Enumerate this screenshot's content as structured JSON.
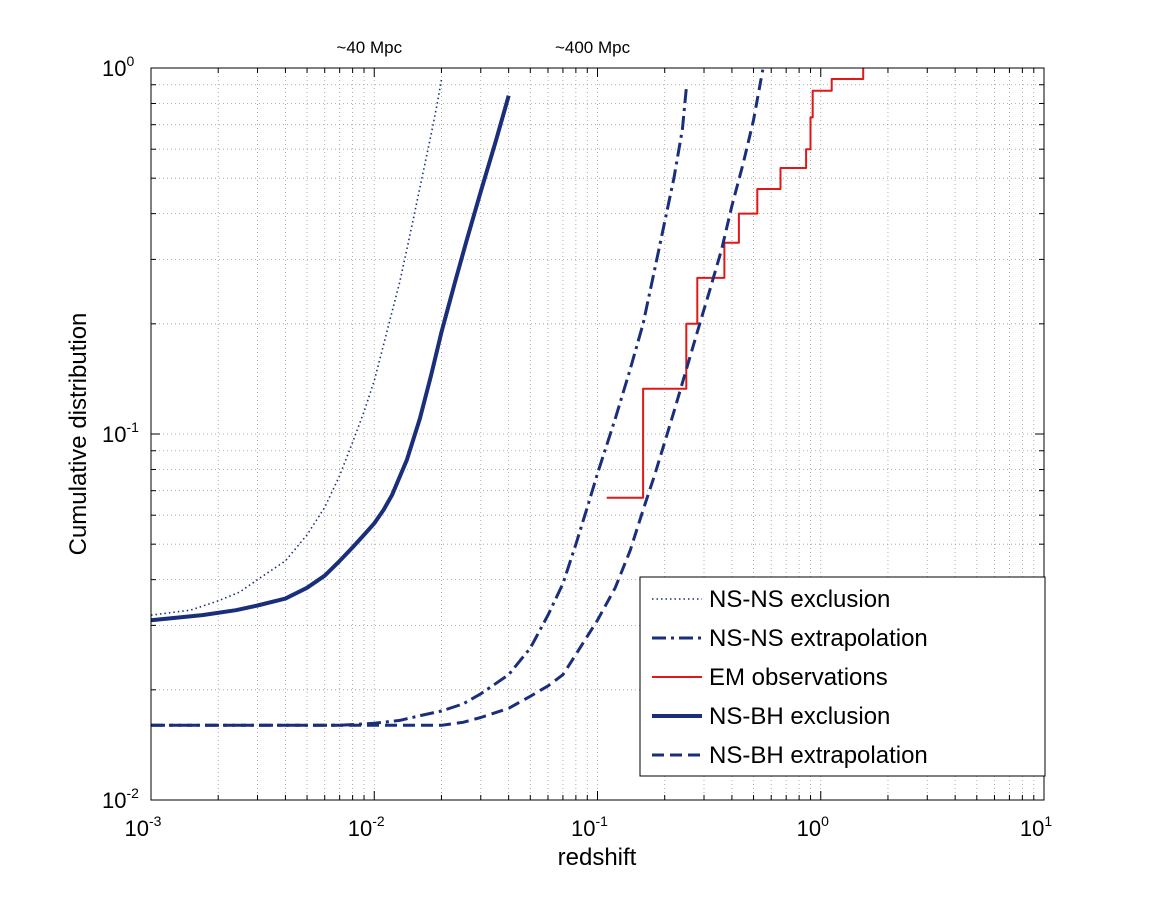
{
  "chart_data": {
    "type": "line",
    "xscale": "log",
    "yscale": "log",
    "xlim": [
      0.001,
      10
    ],
    "ylim": [
      0.01,
      1
    ],
    "xlabel": "redshift",
    "ylabel": "Cumulative distribution",
    "grid": true,
    "legend_position": "bottom-right",
    "x_ticks": [
      {
        "value": 0.001,
        "base": "10",
        "exp": "-3"
      },
      {
        "value": 0.01,
        "base": "10",
        "exp": "-2"
      },
      {
        "value": 0.1,
        "base": "10",
        "exp": "-1"
      },
      {
        "value": 1,
        "base": "10",
        "exp": "0"
      },
      {
        "value": 10,
        "base": "10",
        "exp": "1"
      }
    ],
    "y_ticks": [
      {
        "value": 0.01,
        "base": "10",
        "exp": "-2"
      },
      {
        "value": 0.1,
        "base": "10",
        "exp": "-1"
      },
      {
        "value": 1,
        "base": "10",
        "exp": "0"
      }
    ],
    "annotations": [
      {
        "text": "~40 Mpc",
        "x": 0.0095
      },
      {
        "text": "~400 Mpc",
        "x": 0.095
      }
    ],
    "series": [
      {
        "name": "NS-NS exclusion",
        "style": "dotted",
        "color": "#1a2f7a",
        "width": 1.6,
        "x": [
          0.001,
          0.0015,
          0.002,
          0.0025,
          0.003,
          0.004,
          0.005,
          0.006,
          0.007,
          0.008,
          0.009,
          0.01,
          0.011,
          0.012,
          0.013,
          0.014,
          0.015,
          0.016,
          0.017,
          0.018,
          0.019,
          0.02
        ],
        "y": [
          0.032,
          0.033,
          0.035,
          0.037,
          0.04,
          0.045,
          0.053,
          0.063,
          0.077,
          0.095,
          0.115,
          0.14,
          0.175,
          0.215,
          0.26,
          0.32,
          0.39,
          0.47,
          0.56,
          0.66,
          0.78,
          0.93
        ]
      },
      {
        "name": "NS-NS extrapolation",
        "style": "dashdot",
        "color": "#1a2f7a",
        "width": 3,
        "x": [
          0.001,
          0.002,
          0.005,
          0.007,
          0.01,
          0.013,
          0.016,
          0.02,
          0.025,
          0.03,
          0.04,
          0.05,
          0.06,
          0.07,
          0.08,
          0.09,
          0.1,
          0.12,
          0.14,
          0.16,
          0.18,
          0.2,
          0.22,
          0.24,
          0.25
        ],
        "y": [
          0.016,
          0.016,
          0.016,
          0.016,
          0.0162,
          0.0165,
          0.017,
          0.0175,
          0.0183,
          0.0195,
          0.022,
          0.026,
          0.032,
          0.039,
          0.05,
          0.063,
          0.078,
          0.11,
          0.15,
          0.2,
          0.28,
          0.38,
          0.5,
          0.68,
          0.88
        ]
      },
      {
        "name": "EM observations",
        "style": "step",
        "color": "#e01818",
        "width": 2,
        "x": [
          0.11,
          0.16,
          0.16,
          0.25,
          0.25,
          0.26,
          0.26,
          0.28,
          0.28,
          0.37,
          0.37,
          0.43,
          0.43,
          0.52,
          0.52,
          0.66,
          0.66,
          0.86,
          0.86,
          0.9,
          0.9,
          0.92,
          0.92,
          0.96,
          0.96,
          1.12,
          1.12,
          1.55,
          1.55
        ],
        "y": [
          0.067,
          0.067,
          0.133,
          0.133,
          0.2,
          0.2,
          0.2,
          0.2,
          0.267,
          0.267,
          0.333,
          0.333,
          0.4,
          0.4,
          0.467,
          0.467,
          0.533,
          0.533,
          0.6,
          0.6,
          0.733,
          0.733,
          0.867,
          0.867,
          0.867,
          0.867,
          0.933,
          0.933,
          1.0
        ]
      },
      {
        "name": "NS-BH exclusion",
        "style": "solid",
        "color": "#1a2f7a",
        "width": 4,
        "x": [
          0.001,
          0.0017,
          0.0024,
          0.003,
          0.004,
          0.005,
          0.006,
          0.007,
          0.008,
          0.009,
          0.01,
          0.011,
          0.012,
          0.014,
          0.016,
          0.018,
          0.02,
          0.023,
          0.026,
          0.03,
          0.035,
          0.04
        ],
        "y": [
          0.031,
          0.032,
          0.033,
          0.034,
          0.0355,
          0.038,
          0.041,
          0.045,
          0.049,
          0.053,
          0.057,
          0.062,
          0.068,
          0.085,
          0.11,
          0.145,
          0.19,
          0.26,
          0.34,
          0.46,
          0.63,
          0.84
        ]
      },
      {
        "name": "NS-BH extrapolation",
        "style": "dashed",
        "color": "#1a2f7a",
        "width": 3,
        "x": [
          0.001,
          0.005,
          0.01,
          0.015,
          0.02,
          0.025,
          0.03,
          0.04,
          0.05,
          0.06,
          0.07,
          0.08,
          0.09,
          0.1,
          0.12,
          0.14,
          0.16,
          0.18,
          0.2,
          0.22,
          0.25,
          0.28,
          0.32,
          0.36,
          0.4,
          0.45,
          0.5,
          0.55
        ],
        "y": [
          0.016,
          0.016,
          0.016,
          0.016,
          0.016,
          0.0163,
          0.0168,
          0.0178,
          0.0192,
          0.0205,
          0.022,
          0.025,
          0.028,
          0.031,
          0.038,
          0.048,
          0.062,
          0.077,
          0.095,
          0.115,
          0.15,
          0.19,
          0.25,
          0.32,
          0.42,
          0.55,
          0.72,
          0.99
        ]
      }
    ]
  }
}
